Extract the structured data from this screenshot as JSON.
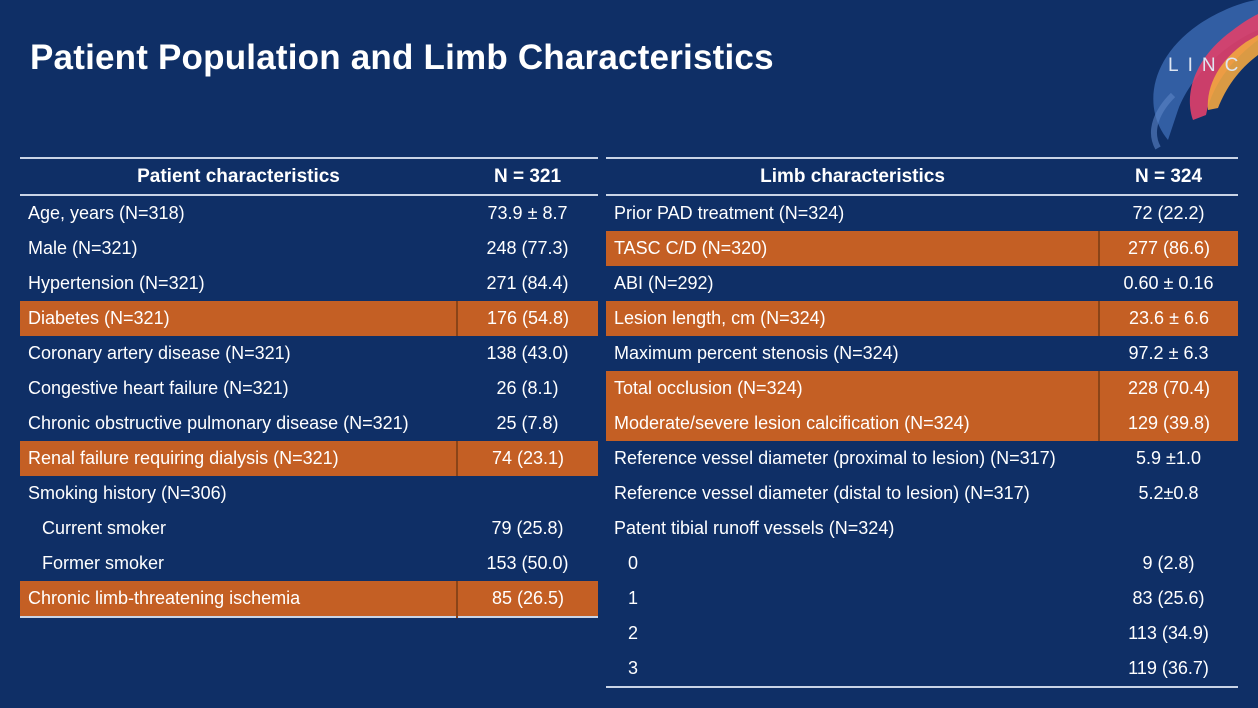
{
  "title": "Patient Population and Limb Characteristics",
  "logo": {
    "text": "LINC"
  },
  "colors": {
    "background": "#0f2f66",
    "highlight": "#c45f24",
    "rule": "#c9d4e6"
  },
  "patient_table": {
    "header": {
      "label": "Patient characteristics",
      "value": "N = 321"
    },
    "rows": [
      {
        "label": "Age, years (N=318)",
        "value": "73.9 ± 8.7",
        "highlight": false,
        "indent": false
      },
      {
        "label": "Male (N=321)",
        "value": "248 (77.3)",
        "highlight": false,
        "indent": false
      },
      {
        "label": "Hypertension (N=321)",
        "value": "271 (84.4)",
        "highlight": false,
        "indent": false
      },
      {
        "label": "Diabetes (N=321)",
        "value": "176 (54.8)",
        "highlight": true,
        "indent": false
      },
      {
        "label": "Coronary artery disease (N=321)",
        "value": "138 (43.0)",
        "highlight": false,
        "indent": false
      },
      {
        "label": "Congestive heart failure (N=321)",
        "value": "26 (8.1)",
        "highlight": false,
        "indent": false
      },
      {
        "label": "Chronic obstructive pulmonary disease (N=321)",
        "value": "25 (7.8)",
        "highlight": false,
        "indent": false
      },
      {
        "label": "Renal failure requiring dialysis (N=321)",
        "value": "74 (23.1)",
        "highlight": true,
        "indent": false
      },
      {
        "label": "Smoking history (N=306)",
        "value": "",
        "highlight": false,
        "indent": false
      },
      {
        "label": "Current smoker",
        "value": "79 (25.8)",
        "highlight": false,
        "indent": true
      },
      {
        "label": "Former smoker",
        "value": "153 (50.0)",
        "highlight": false,
        "indent": true
      },
      {
        "label": "Chronic limb-threatening ischemia",
        "value": "85 (26.5)",
        "highlight": true,
        "indent": false
      }
    ]
  },
  "limb_table": {
    "header": {
      "label": "Limb characteristics",
      "value": "N = 324"
    },
    "rows": [
      {
        "label": "Prior PAD treatment (N=324)",
        "value": "72 (22.2)",
        "highlight": false,
        "indent": false
      },
      {
        "label": "TASC C/D (N=320)",
        "value": "277 (86.6)",
        "highlight": true,
        "indent": false
      },
      {
        "label": "ABI (N=292)",
        "value": "0.60 ± 0.16",
        "highlight": false,
        "indent": false
      },
      {
        "label": "Lesion length, cm (N=324)",
        "value": "23.6 ± 6.6",
        "highlight": true,
        "indent": false
      },
      {
        "label": "Maximum percent stenosis (N=324)",
        "value": "97.2 ± 6.3",
        "highlight": false,
        "indent": false
      },
      {
        "label": "Total occlusion (N=324)",
        "value": "228 (70.4)",
        "highlight": true,
        "indent": false
      },
      {
        "label": "Moderate/severe lesion calcification (N=324)",
        "value": "129 (39.8)",
        "highlight": true,
        "indent": false
      },
      {
        "label": "Reference vessel diameter (proximal to lesion) (N=317)",
        "value": "5.9 ±1.0",
        "highlight": false,
        "indent": false
      },
      {
        "label": "Reference vessel diameter (distal to lesion) (N=317)",
        "value": "5.2±0.8",
        "highlight": false,
        "indent": false
      },
      {
        "label": "Patent tibial runoff vessels (N=324)",
        "value": "",
        "highlight": false,
        "indent": false
      },
      {
        "label": "0",
        "value": "9 (2.8)",
        "highlight": false,
        "indent": true
      },
      {
        "label": "1",
        "value": "83 (25.6)",
        "highlight": false,
        "indent": true
      },
      {
        "label": "2",
        "value": "113 (34.9)",
        "highlight": false,
        "indent": true
      },
      {
        "label": "3",
        "value": "119 (36.7)",
        "highlight": false,
        "indent": true
      }
    ]
  }
}
